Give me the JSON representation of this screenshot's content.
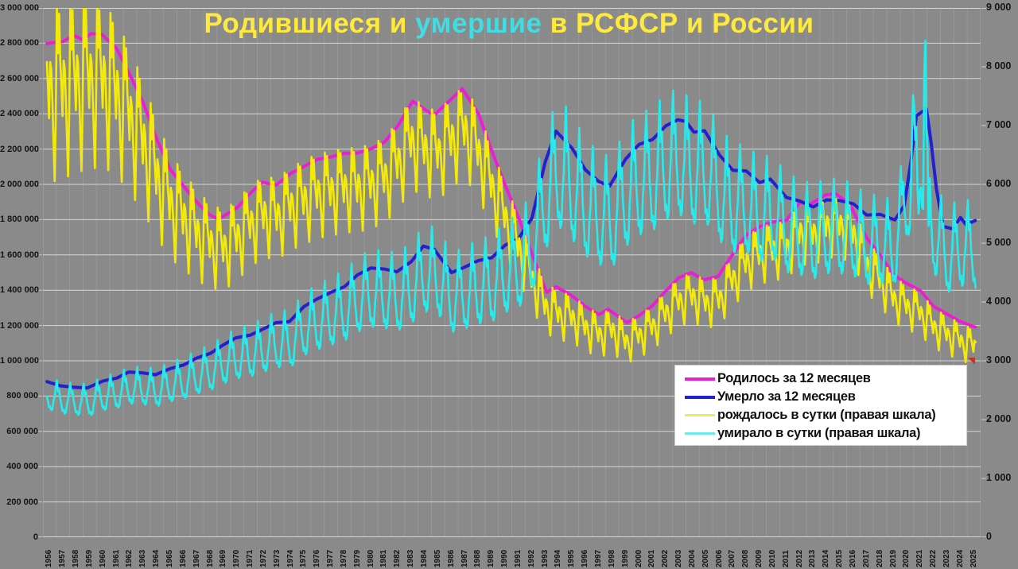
{
  "title": {
    "parts": [
      {
        "text": "Родившиеся и ",
        "color": "#ffe93c"
      },
      {
        "text": "умершие",
        "color": "#41dde2"
      },
      {
        "text": " в РСФСР и России",
        "color": "#ffe93c"
      }
    ]
  },
  "legend": {
    "items": [
      {
        "label": "Родилось за 12 месяцев",
        "color": "#ea1fd3"
      },
      {
        "label": "Умерло за 12 месяцев",
        "color": "#2121cf"
      },
      {
        "label": "рождалось в сутки (правая шкала)",
        "color": "#f0e95e"
      },
      {
        "label": "умирало в сутки (правая шкала)",
        "color": "#6fe9e9"
      }
    ]
  },
  "colors": {
    "background": "#8a8a8a",
    "grid_major": "#d6d6d6",
    "grid_minor": "#989898",
    "axis_text": "#141414",
    "legend_background": "#ffffff"
  },
  "chart_data": {
    "type": "line",
    "title": "Родившиеся и умершие в РСФСР и России",
    "grid": true,
    "legend_position": "inset-bottom-right",
    "x_range": [
      1956,
      2026
    ],
    "left_axis": {
      "min": 0,
      "max": 3000000,
      "tick_step": 200000,
      "tick_labels": [
        "0",
        "200 000",
        "400 000",
        "600 000",
        "800 000",
        "1 000 000",
        "1 200 000",
        "1 400 000",
        "1 600 000",
        "1 800 000",
        "2 000 000",
        "2 200 000",
        "2 400 000",
        "2 600 000",
        "2 800 000",
        "3 000 000"
      ]
    },
    "right_axis": {
      "min": 0,
      "max": 9000,
      "tick_step": 1000,
      "tick_labels": [
        "0",
        "1 000",
        "2 000",
        "3 000",
        "4 000",
        "5 000",
        "6 000",
        "7 000",
        "8 000",
        "9 000"
      ]
    },
    "x_tick_years": [
      "1956",
      "1957",
      "1958",
      "1959",
      "1960",
      "1961",
      "1962",
      "1963",
      "1964",
      "1965",
      "1966",
      "1967",
      "1968",
      "1969",
      "1970",
      "1971",
      "1972",
      "1973",
      "1974",
      "1975",
      "1976",
      "1977",
      "1978",
      "1979",
      "1980",
      "1981",
      "1982",
      "1983",
      "1984",
      "1985",
      "1986",
      "1987",
      "1988",
      "1989",
      "1990",
      "1991",
      "1992",
      "1993",
      "1994",
      "1995",
      "1996",
      "1997",
      "1998",
      "1999",
      "2000",
      "2001",
      "2002",
      "2003",
      "2004",
      "2005",
      "2006",
      "2007",
      "2008",
      "2009",
      "2010",
      "2011",
      "2012",
      "2013",
      "2014",
      "2015",
      "2016",
      "2017",
      "2018",
      "2019",
      "2020",
      "2021",
      "2022",
      "2023",
      "2024",
      "2025"
    ],
    "series": [
      {
        "name": "Родилось за 12 месяцев",
        "axis": "left",
        "color": "#ea1fd3",
        "width": 4,
        "points": [
          [
            1956.3,
            2798000
          ],
          [
            1957.5,
            2810000
          ],
          [
            1958.3,
            2845000
          ],
          [
            1959.0,
            2820000
          ],
          [
            1959.6,
            2855000
          ],
          [
            1960.4,
            2850000
          ],
          [
            1961.5,
            2770000
          ],
          [
            1962.5,
            2620000
          ],
          [
            1963.5,
            2460000
          ],
          [
            1964.5,
            2255000
          ],
          [
            1965.5,
            2085000
          ],
          [
            1966.5,
            1990000
          ],
          [
            1967.5,
            1898000
          ],
          [
            1968.4,
            1830000
          ],
          [
            1969.1,
            1802000
          ],
          [
            1970.5,
            1868000
          ],
          [
            1971.5,
            1952000
          ],
          [
            1972.4,
            2012000
          ],
          [
            1973.4,
            1996000
          ],
          [
            1974.5,
            2062000
          ],
          [
            1975.5,
            2102000
          ],
          [
            1976.5,
            2142000
          ],
          [
            1977.5,
            2156000
          ],
          [
            1978.5,
            2176000
          ],
          [
            1979.5,
            2178000
          ],
          [
            1980.5,
            2202000
          ],
          [
            1981.5,
            2240000
          ],
          [
            1982.5,
            2332000
          ],
          [
            1983.6,
            2472000
          ],
          [
            1984.6,
            2420000
          ],
          [
            1985.2,
            2392000
          ],
          [
            1986.4,
            2478000
          ],
          [
            1987.3,
            2542000
          ],
          [
            1988.5,
            2402000
          ],
          [
            1989.5,
            2192000
          ],
          [
            1990.5,
            1996000
          ],
          [
            1991.5,
            1812000
          ],
          [
            1992.5,
            1608000
          ],
          [
            1993.6,
            1388000
          ],
          [
            1994.3,
            1420000
          ],
          [
            1995.5,
            1368000
          ],
          [
            1996.5,
            1308000
          ],
          [
            1997.5,
            1262000
          ],
          [
            1998.2,
            1292000
          ],
          [
            1999.6,
            1216000
          ],
          [
            2000.5,
            1256000
          ],
          [
            2001.5,
            1312000
          ],
          [
            2002.5,
            1396000
          ],
          [
            2003.5,
            1472000
          ],
          [
            2004.4,
            1500000
          ],
          [
            2005.3,
            1458000
          ],
          [
            2006.4,
            1478000
          ],
          [
            2007.5,
            1605000
          ],
          [
            2008.5,
            1712000
          ],
          [
            2009.5,
            1760000
          ],
          [
            2010.5,
            1788000
          ],
          [
            2011.5,
            1796000
          ],
          [
            2012.5,
            1898000
          ],
          [
            2013.3,
            1888000
          ],
          [
            2014.4,
            1940000
          ],
          [
            2015.2,
            1946000
          ],
          [
            2016.2,
            1892000
          ],
          [
            2017.5,
            1695000
          ],
          [
            2018.5,
            1600000
          ],
          [
            2019.5,
            1486000
          ],
          [
            2020.5,
            1438000
          ],
          [
            2021.5,
            1398000
          ],
          [
            2022.5,
            1308000
          ],
          [
            2023.5,
            1264000
          ],
          [
            2024.5,
            1222000
          ],
          [
            2025.6,
            1190000
          ]
        ]
      },
      {
        "name": "Умерло за 12 месяцев",
        "axis": "left",
        "color": "#2121cf",
        "width": 4,
        "points": [
          [
            1956.3,
            882000
          ],
          [
            1957.3,
            858000
          ],
          [
            1958.3,
            850000
          ],
          [
            1959.3,
            846000
          ],
          [
            1960.5,
            886000
          ],
          [
            1961.5,
            902000
          ],
          [
            1962.4,
            936000
          ],
          [
            1963.4,
            932000
          ],
          [
            1964.4,
            921000
          ],
          [
            1965.5,
            956000
          ],
          [
            1966.5,
            976000
          ],
          [
            1967.5,
            1016000
          ],
          [
            1968.5,
            1042000
          ],
          [
            1969.5,
            1092000
          ],
          [
            1970.4,
            1130000
          ],
          [
            1971.5,
            1146000
          ],
          [
            1972.5,
            1182000
          ],
          [
            1973.4,
            1216000
          ],
          [
            1974.4,
            1222000
          ],
          [
            1975.5,
            1308000
          ],
          [
            1976.5,
            1352000
          ],
          [
            1977.5,
            1388000
          ],
          [
            1978.5,
            1420000
          ],
          [
            1979.5,
            1488000
          ],
          [
            1980.5,
            1526000
          ],
          [
            1981.5,
            1520000
          ],
          [
            1982.4,
            1504000
          ],
          [
            1983.5,
            1562000
          ],
          [
            1984.4,
            1650000
          ],
          [
            1985.2,
            1632000
          ],
          [
            1986.5,
            1500000
          ],
          [
            1987.4,
            1528000
          ],
          [
            1988.5,
            1568000
          ],
          [
            1989.5,
            1584000
          ],
          [
            1990.5,
            1655000
          ],
          [
            1991.5,
            1692000
          ],
          [
            1992.5,
            1808000
          ],
          [
            1993.5,
            2128000
          ],
          [
            1994.3,
            2302000
          ],
          [
            1995.5,
            2205000
          ],
          [
            1996.5,
            2082000
          ],
          [
            1997.5,
            2016000
          ],
          [
            1998.3,
            1990000
          ],
          [
            1999.5,
            2144000
          ],
          [
            2000.5,
            2226000
          ],
          [
            2001.5,
            2254000
          ],
          [
            2002.5,
            2332000
          ],
          [
            2003.4,
            2366000
          ],
          [
            2004.0,
            2356000
          ],
          [
            2004.6,
            2296000
          ],
          [
            2005.4,
            2304000
          ],
          [
            2006.5,
            2166000
          ],
          [
            2007.5,
            2080000
          ],
          [
            2008.5,
            2076000
          ],
          [
            2009.5,
            2010000
          ],
          [
            2010.3,
            2030000
          ],
          [
            2011.5,
            1926000
          ],
          [
            2012.5,
            1906000
          ],
          [
            2013.5,
            1872000
          ],
          [
            2014.5,
            1912000
          ],
          [
            2015.5,
            1908000
          ],
          [
            2016.5,
            1890000
          ],
          [
            2017.5,
            1826000
          ],
          [
            2018.5,
            1830000
          ],
          [
            2019.6,
            1798000
          ],
          [
            2020.3,
            1880000
          ],
          [
            2020.8,
            2130000
          ],
          [
            2021.2,
            2388000
          ],
          [
            2021.6,
            2410000
          ],
          [
            2021.95,
            2428000
          ],
          [
            2022.3,
            2240000
          ],
          [
            2022.7,
            1975000
          ],
          [
            2023.2,
            1762000
          ],
          [
            2023.9,
            1748000
          ],
          [
            2024.5,
            1812000
          ],
          [
            2024.9,
            1772000
          ],
          [
            2025.6,
            1795000
          ]
        ]
      },
      {
        "name": "рождалось в сутки (правая шкала)",
        "axis": "right",
        "color": "#f3ea0a",
        "width": 2.6,
        "first_year": 1956,
        "yearly_mean_per_day": [
          7671,
          7699,
          7795,
          7822,
          7808,
          7589,
          7178,
          6740,
          6178,
          5712,
          5452,
          5200,
          5014,
          4937,
          5118,
          5348,
          5512,
          5470,
          5650,
          5758,
          5868,
          5907,
          5962,
          5967,
          6033,
          6137,
          6389,
          6772,
          6630,
          6553,
          6790,
          6964,
          6581,
          6005,
          5468,
          4964,
          4406,
          3934,
          3803,
          3748,
          3584,
          3458,
          3540,
          3332,
          3441,
          3595,
          3825,
          4033,
          4110,
          3995,
          4049,
          4397,
          4690,
          4822,
          4899,
          4921,
          5200,
          5173,
          5315,
          5332,
          5183,
          4644,
          4384,
          4071,
          3940,
          3830,
          3584,
          3463,
          3348,
          3260
        ],
        "monthly_pattern": [
          1.1,
          1.04,
          1.09,
          1.03,
          1.0,
          0.96,
          1.03,
          1.02,
          0.98,
          0.93,
          0.88,
          0.96
        ],
        "amplitude_stops": [
          [
            1956,
            1.8
          ],
          [
            1972,
            1.15
          ],
          [
            1990,
            1.0
          ],
          [
            2010,
            0.9
          ],
          [
            2025,
            0.85
          ]
        ]
      },
      {
        "name": "умирало в сутки (правая шкала)",
        "axis": "right",
        "color": "#29eaea",
        "width": 2.6,
        "first_year": 1956,
        "yearly_mean_per_day": [
          2416,
          2351,
          2329,
          2318,
          2427,
          2471,
          2564,
          2553,
          2523,
          2619,
          2674,
          2784,
          2855,
          2992,
          3096,
          3140,
          3238,
          3332,
          3348,
          3584,
          3704,
          3803,
          3890,
          4077,
          4181,
          4164,
          4121,
          4279,
          4521,
          4471,
          4110,
          4186,
          4296,
          4340,
          4534,
          4636,
          4954,
          5830,
          6307,
          6041,
          5704,
          5523,
          5452,
          5874,
          6099,
          6175,
          6389,
          6482,
          6290,
          6312,
          5934,
          5699,
          5688,
          5507,
          5562,
          5277,
          5222,
          5129,
          5238,
          5227,
          5178,
          5003,
          5014,
          4926,
          5863,
          6699,
          5219,
          4827,
          4964,
          4918
        ],
        "monthly_pattern": [
          1.14,
          1.05,
          1.07,
          0.99,
          0.95,
          0.9,
          0.91,
          0.88,
          0.89,
          0.96,
          1.0,
          1.08
        ],
        "amplitude_stops": [
          [
            1956,
            0.85
          ],
          [
            1980,
            1.2
          ],
          [
            1995,
            1.35
          ],
          [
            2019,
            1.15
          ],
          [
            2025,
            1.15
          ]
        ],
        "anomalies": [
          [
            2020,
            10,
            6900
          ],
          [
            2020,
            11,
            7520
          ],
          [
            2021,
            3,
            5900
          ],
          [
            2021,
            4,
            5500
          ],
          [
            2021,
            9,
            7900
          ],
          [
            2021,
            10,
            8440
          ],
          [
            2021,
            11,
            6900
          ],
          [
            2022,
            0,
            6600
          ],
          [
            2022,
            1,
            5300
          ]
        ]
      }
    ]
  }
}
